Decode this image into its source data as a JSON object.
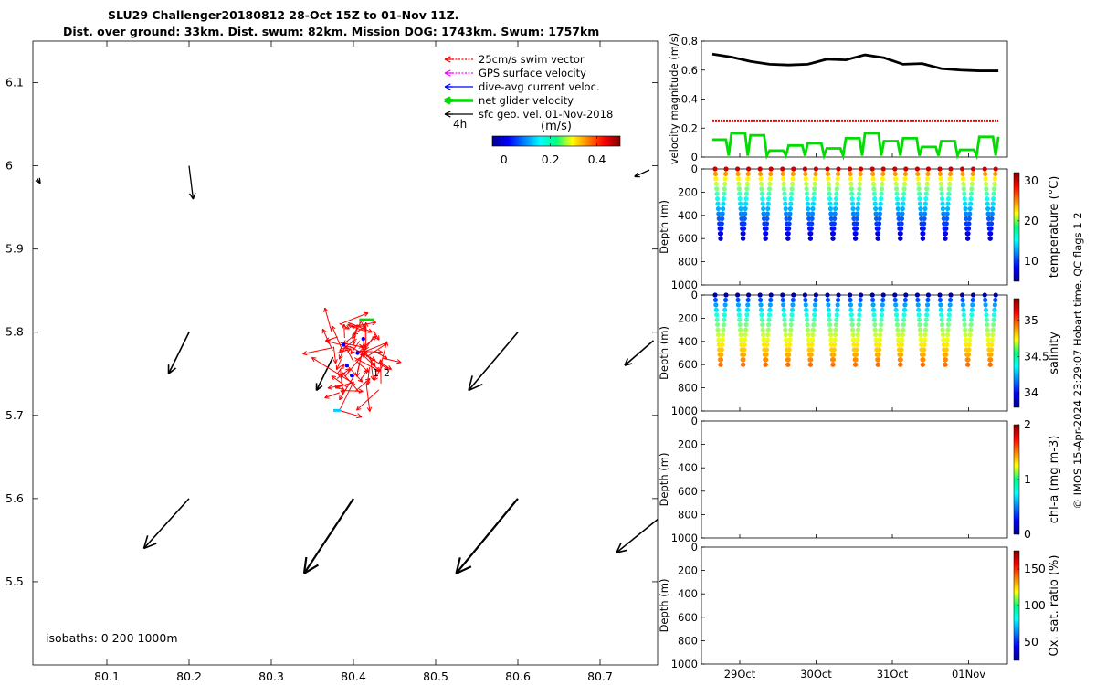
{
  "title": {
    "line1": "SLU29 Challenger20180812 28-Oct 15Z to 01-Nov 11Z.",
    "line2": "Dist. over ground: 33km. Dist. swum: 82km. Mission DOG: 1743km. Swum: 1757km"
  },
  "colors": {
    "swim": "#ff0000",
    "gps": "#ff00ff",
    "dive_avg": "#0000ff",
    "net": "#00dd00",
    "geo": "#000000",
    "speed": "#000000"
  },
  "chart_data": [
    {
      "type": "map",
      "xlim": [
        80.01,
        80.77
      ],
      "ylim": [
        5.4,
        6.15
      ],
      "x_ticks": [
        "80.1",
        "80.2",
        "80.3",
        "80.4",
        "80.5",
        "80.6",
        "80.7"
      ],
      "y_ticks": [
        "5.5",
        "5.6",
        "5.7",
        "5.8",
        "5.9",
        "6",
        "6.1"
      ],
      "legend": [
        {
          "label": "25cm/s swim vector",
          "color": "#ff0000"
        },
        {
          "label": "GPS surface velocity",
          "color": "#ff00ff"
        },
        {
          "label": "dive-avg current veloc.",
          "color": "#0000ff"
        },
        {
          "label": "net glider velocity",
          "color": "#00dd00"
        },
        {
          "label": "sfc geo. vel. 01-Nov-2018",
          "color": "#000000"
        }
      ],
      "legend_position": "top-right",
      "time_step_label": "4h",
      "colorbar": {
        "title": "(m/s)",
        "ticks": [
          "0",
          "0.2",
          "0.4"
        ],
        "range": [
          -0.05,
          0.5
        ]
      },
      "isobaths_label": "isobaths: 0   200  1000m",
      "track_labels": [
        "1",
        "2"
      ],
      "geo_vectors": [
        {
          "x": 80.2,
          "y": 6.0,
          "dx": 0.005,
          "dy": -0.04
        },
        {
          "x": 80.2,
          "y": 5.8,
          "dx": -0.025,
          "dy": -0.05
        },
        {
          "x": 80.6,
          "y": 5.8,
          "dx": -0.06,
          "dy": -0.07
        },
        {
          "x": 80.765,
          "y": 5.79,
          "dx": -0.035,
          "dy": -0.03
        },
        {
          "x": 80.76,
          "y": 5.995,
          "dx": -0.018,
          "dy": -0.008
        },
        {
          "x": 80.2,
          "y": 5.6,
          "dx": -0.055,
          "dy": -0.06
        },
        {
          "x": 80.4,
          "y": 5.6,
          "dx": -0.06,
          "dy": -0.09
        },
        {
          "x": 80.6,
          "y": 5.6,
          "dx": -0.075,
          "dy": -0.09
        },
        {
          "x": 80.77,
          "y": 5.575,
          "dx": -0.05,
          "dy": -0.04
        },
        {
          "x": 80.375,
          "y": 5.77,
          "dx": -0.02,
          "dy": -0.04
        },
        {
          "x": 80.015,
          "y": 5.985,
          "dx": 0.004,
          "dy": -0.006
        }
      ]
    },
    {
      "type": "line",
      "ylabel": "velocity magnitude (m/s)",
      "ylim": [
        0,
        0.8
      ],
      "y_ticks": [
        "0",
        "0.2",
        "0.4",
        "0.6",
        "0.8"
      ],
      "x": [
        0.0,
        0.25,
        0.5,
        0.75,
        1.0,
        1.25,
        1.5,
        1.75,
        2.0,
        2.25,
        2.5,
        2.75,
        3.0,
        3.25,
        3.5,
        3.75
      ],
      "series": [
        {
          "name": "glider speed",
          "color": "#000000",
          "values": [
            0.71,
            0.69,
            0.66,
            0.64,
            0.635,
            0.64,
            0.675,
            0.67,
            0.705,
            0.685,
            0.64,
            0.645,
            0.61,
            0.6,
            0.595,
            0.595
          ]
        },
        {
          "name": "swim vector",
          "color": "#ff0000",
          "values": [
            0.25,
            0.25,
            0.25,
            0.25,
            0.25,
            0.25,
            0.25,
            0.25,
            0.25,
            0.25,
            0.25,
            0.25,
            0.25,
            0.25,
            0.25,
            0.25
          ]
        },
        {
          "name": "net glider velocity",
          "color": "#00dd00",
          "values": [
            0.12,
            0.165,
            0.15,
            0.045,
            0.08,
            0.095,
            0.06,
            0.13,
            0.165,
            0.11,
            0.13,
            0.07,
            0.11,
            0.05,
            0.14,
            0.14
          ]
        }
      ],
      "x_ticks": [
        "29Oct",
        "30Oct",
        "31Oct",
        "01Nov"
      ]
    },
    {
      "type": "scatter",
      "variable": "temperature",
      "ylabel": "Depth (m)",
      "clabel": "temperature (°C)",
      "ylim": [
        0,
        1000
      ],
      "y_ticks": [
        "0",
        "200",
        "400",
        "600",
        "800",
        "1000"
      ],
      "c_ticks": [
        "10",
        "20",
        "30"
      ],
      "crange": [
        5,
        32
      ],
      "surface_value": 30,
      "deep_value": 7,
      "dives": 13,
      "max_depth": 600
    },
    {
      "type": "scatter",
      "variable": "salinity",
      "ylabel": "Depth (m)",
      "clabel": "salinity",
      "ylim": [
        0,
        1000
      ],
      "y_ticks": [
        "0",
        "200",
        "400",
        "600",
        "800",
        "1000"
      ],
      "c_ticks": [
        "34",
        "34.5",
        "35"
      ],
      "crange": [
        33.8,
        35.3
      ],
      "surface_value": 33.85,
      "deep_value": 34.95,
      "dives": 13,
      "max_depth": 600
    },
    {
      "type": "scatter",
      "variable": "chl-a",
      "ylabel": "Depth (m)",
      "clabel": "chl-a (mg m-3)",
      "ylim": [
        0,
        1000
      ],
      "y_ticks": [
        "0",
        "200",
        "400",
        "600",
        "800",
        "1000"
      ],
      "c_ticks": [
        "0",
        "1",
        "2"
      ],
      "crange": [
        0,
        2
      ]
    },
    {
      "type": "scatter",
      "variable": "oxygen",
      "ylabel": "Depth (m)",
      "clabel": "Ox. sat. ratio (%)",
      "ylim": [
        0,
        1000
      ],
      "y_ticks": [
        "0",
        "200",
        "400",
        "600",
        "800",
        "1000"
      ],
      "c_ticks": [
        "50",
        "100",
        "150"
      ],
      "crange": [
        25,
        175
      ]
    }
  ],
  "footer": "© IMOS 15-Apr-2024 23:29:07 Hobart time. QC flags 1  2"
}
